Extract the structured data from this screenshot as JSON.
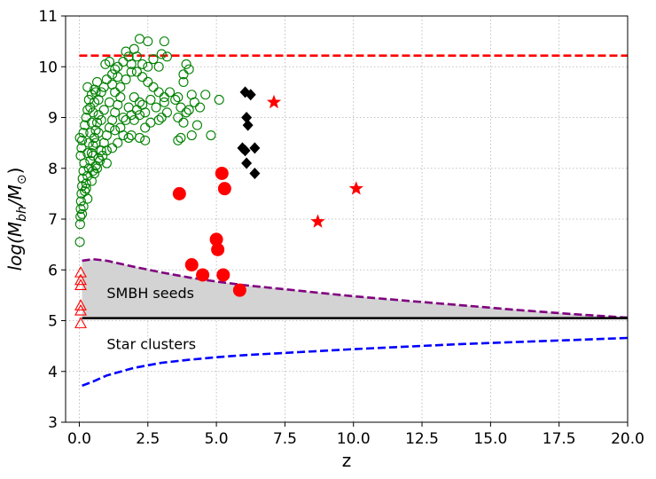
{
  "chart_data": {
    "type": "scatter",
    "title": "",
    "xlabel": "z",
    "ylabel": "log(M_bh/M_⊙)",
    "ylabel_parts": {
      "prefix": "log(M",
      "sub1": "bh",
      "mid": "/M",
      "sub2": "⊙",
      "suffix": ")"
    },
    "xlim": [
      -0.5,
      20.0
    ],
    "ylim": [
      3,
      11
    ],
    "xticks": [
      0.0,
      2.5,
      5.0,
      7.5,
      10.0,
      12.5,
      15.0,
      17.5,
      20.0
    ],
    "xtick_labels": [
      "0.0",
      "2.5",
      "5.0",
      "7.5",
      "10.0",
      "12.5",
      "15.0",
      "17.5",
      "20.0"
    ],
    "yticks": [
      3,
      4,
      5,
      6,
      7,
      8,
      9,
      10,
      11
    ],
    "ytick_labels": [
      "3",
      "4",
      "5",
      "6",
      "7",
      "8",
      "9",
      "10",
      "11"
    ],
    "grid": true,
    "annotations": [
      {
        "text": "SMBH seeds",
        "x": 1.0,
        "y": 5.55
      },
      {
        "text": "Star clusters",
        "x": 1.0,
        "y": 4.55
      }
    ],
    "reference_lines": {
      "upper_limit": {
        "y": 10.22,
        "color": "#ff0000",
        "style": "dashed"
      },
      "seed_threshold": {
        "y": 5.05,
        "color": "#000000",
        "style": "solid"
      }
    },
    "curves": [
      {
        "name": "seed-upper-curve",
        "color": "#800080",
        "style": "dashed",
        "x": [
          0.1,
          0.5,
          1.0,
          2.0,
          3.0,
          4.0,
          5.0,
          6.0,
          8.0,
          10.0,
          12.0,
          14.0,
          16.0,
          18.0,
          20.0
        ],
        "y": [
          6.18,
          6.21,
          6.18,
          6.06,
          5.95,
          5.85,
          5.77,
          5.7,
          5.59,
          5.48,
          5.39,
          5.3,
          5.21,
          5.13,
          5.06
        ]
      },
      {
        "name": "cluster-curve",
        "color": "#0000ff",
        "style": "dashed",
        "x": [
          0.1,
          0.5,
          1.0,
          2.0,
          3.0,
          4.0,
          5.0,
          6.0,
          8.0,
          10.0,
          12.0,
          14.0,
          16.0,
          18.0,
          20.0
        ],
        "y": [
          3.72,
          3.8,
          3.92,
          4.07,
          4.17,
          4.23,
          4.28,
          4.32,
          4.38,
          4.44,
          4.49,
          4.54,
          4.58,
          4.62,
          4.66
        ]
      }
    ],
    "shaded_region": {
      "color": "#d3d3d3",
      "between": [
        "seed-upper-curve",
        "seed_threshold"
      ]
    },
    "colors": {
      "green": "#008000",
      "red": "#ff0000",
      "black": "#000000",
      "grid": "#b0b0b0"
    },
    "series": [
      {
        "name": "low-z quasars",
        "marker": "open-circle",
        "color": "#008000",
        "points": [
          [
            0.02,
            6.55
          ],
          [
            0.03,
            6.9
          ],
          [
            0.04,
            7.05
          ],
          [
            0.05,
            7.2
          ],
          [
            0.06,
            7.35
          ],
          [
            0.08,
            7.5
          ],
          [
            0.1,
            7.65
          ],
          [
            0.12,
            7.8
          ],
          [
            0.15,
            7.95
          ],
          [
            0.18,
            8.1
          ],
          [
            0.05,
            8.25
          ],
          [
            0.08,
            8.4
          ],
          [
            0.1,
            8.55
          ],
          [
            0.15,
            8.7
          ],
          [
            0.2,
            8.85
          ],
          [
            0.25,
            9.0
          ],
          [
            0.3,
            9.15
          ],
          [
            0.02,
            8.6
          ],
          [
            0.2,
            7.55
          ],
          [
            0.25,
            7.7
          ],
          [
            0.3,
            7.85
          ],
          [
            0.35,
            8.0
          ],
          [
            0.4,
            8.15
          ],
          [
            0.45,
            8.3
          ],
          [
            0.5,
            8.45
          ],
          [
            0.55,
            8.6
          ],
          [
            0.6,
            8.75
          ],
          [
            0.65,
            8.9
          ],
          [
            0.7,
            9.05
          ],
          [
            0.3,
            8.3
          ],
          [
            0.35,
            8.5
          ],
          [
            0.4,
            8.7
          ],
          [
            0.45,
            8.9
          ],
          [
            0.5,
            9.1
          ],
          [
            0.55,
            9.3
          ],
          [
            0.6,
            9.5
          ],
          [
            0.4,
            9.2
          ],
          [
            0.5,
            7.95
          ],
          [
            0.6,
            8.05
          ],
          [
            0.7,
            8.2
          ],
          [
            0.8,
            8.35
          ],
          [
            0.9,
            8.5
          ],
          [
            1.0,
            8.65
          ],
          [
            1.1,
            8.8
          ],
          [
            1.2,
            8.95
          ],
          [
            1.3,
            9.1
          ],
          [
            1.4,
            9.25
          ],
          [
            1.5,
            9.4
          ],
          [
            0.7,
            9.35
          ],
          [
            0.8,
            9.5
          ],
          [
            0.9,
            9.6
          ],
          [
            1.0,
            9.75
          ],
          [
            1.2,
            9.85
          ],
          [
            1.4,
            10.0
          ],
          [
            1.6,
            10.1
          ],
          [
            1.8,
            10.2
          ],
          [
            2.0,
            10.35
          ],
          [
            2.2,
            10.55
          ],
          [
            2.5,
            10.5
          ],
          [
            3.1,
            10.5
          ],
          [
            1.7,
            10.3
          ],
          [
            1.9,
            10.05
          ],
          [
            2.1,
            9.9
          ],
          [
            2.3,
            9.8
          ],
          [
            2.5,
            9.7
          ],
          [
            2.7,
            9.6
          ],
          [
            2.9,
            9.5
          ],
          [
            3.1,
            9.4
          ],
          [
            1.6,
            9.0
          ],
          [
            1.8,
            9.2
          ],
          [
            2.0,
            9.4
          ],
          [
            2.2,
            9.3
          ],
          [
            2.4,
            9.1
          ],
          [
            2.6,
            8.9
          ],
          [
            1.2,
            8.4
          ],
          [
            1.4,
            8.5
          ],
          [
            1.6,
            8.65
          ],
          [
            1.9,
            8.65
          ],
          [
            2.2,
            8.6
          ],
          [
            2.4,
            8.55
          ],
          [
            1.0,
            8.35
          ],
          [
            1.3,
            8.75
          ],
          [
            1.5,
            8.8
          ],
          [
            1.7,
            8.95
          ],
          [
            1.9,
            9.05
          ],
          [
            2.1,
            9.15
          ],
          [
            2.3,
            9.25
          ],
          [
            2.6,
            9.35
          ],
          [
            2.8,
            9.2
          ],
          [
            3.0,
            9.0
          ],
          [
            3.2,
            9.1
          ],
          [
            2.7,
            10.15
          ],
          [
            2.9,
            10.0
          ],
          [
            3.0,
            10.25
          ],
          [
            3.2,
            10.2
          ],
          [
            2.5,
            10.0
          ],
          [
            2.3,
            10.05
          ],
          [
            2.1,
            10.2
          ],
          [
            1.9,
            9.9
          ],
          [
            1.7,
            9.75
          ],
          [
            1.5,
            9.6
          ],
          [
            1.3,
            9.5
          ],
          [
            1.1,
            9.3
          ],
          [
            0.9,
            9.15
          ],
          [
            0.8,
            8.95
          ],
          [
            0.7,
            8.7
          ],
          [
            0.6,
            8.5
          ],
          [
            0.5,
            8.25
          ],
          [
            3.3,
            9.5
          ],
          [
            3.5,
            9.35
          ],
          [
            3.7,
            9.2
          ],
          [
            3.9,
            9.1
          ],
          [
            3.6,
            9.0
          ],
          [
            3.8,
            8.9
          ],
          [
            3.7,
            8.6
          ],
          [
            3.6,
            8.55
          ],
          [
            4.0,
            9.15
          ],
          [
            4.2,
            9.3
          ],
          [
            4.4,
            9.2
          ],
          [
            4.6,
            9.45
          ],
          [
            4.8,
            8.65
          ],
          [
            5.1,
            9.35
          ],
          [
            4.1,
            8.65
          ],
          [
            4.3,
            8.85
          ],
          [
            3.8,
            9.85
          ],
          [
            3.9,
            10.05
          ],
          [
            4.0,
            9.95
          ],
          [
            3.8,
            9.7
          ],
          [
            4.1,
            9.45
          ],
          [
            3.6,
            9.4
          ],
          [
            1.2,
            9.65
          ],
          [
            1.4,
            9.8
          ],
          [
            0.95,
            10.05
          ],
          [
            1.1,
            10.1
          ],
          [
            1.3,
            9.95
          ],
          [
            2.0,
            8.95
          ],
          [
            2.2,
            9.05
          ],
          [
            2.4,
            8.8
          ],
          [
            1.8,
            8.6
          ],
          [
            3.1,
            9.3
          ],
          [
            2.9,
            8.95
          ],
          [
            0.85,
            8.25
          ],
          [
            1.0,
            8.1
          ],
          [
            0.3,
            7.4
          ],
          [
            0.15,
            7.25
          ],
          [
            0.1,
            7.1
          ],
          [
            0.25,
            7.6
          ],
          [
            0.45,
            7.75
          ],
          [
            0.55,
            7.9
          ],
          [
            0.65,
            8.0
          ],
          [
            0.75,
            8.15
          ],
          [
            0.35,
            9.35
          ],
          [
            0.45,
            9.45
          ],
          [
            0.55,
            9.55
          ],
          [
            0.3,
            9.6
          ],
          [
            0.65,
            9.7
          ]
        ]
      },
      {
        "name": "high-z quasars",
        "marker": "filled-diamond",
        "color": "#000000",
        "points": [
          [
            6.05,
            9.5
          ],
          [
            6.25,
            9.45
          ],
          [
            6.1,
            9.0
          ],
          [
            6.15,
            8.85
          ],
          [
            5.95,
            8.4
          ],
          [
            6.05,
            8.35
          ],
          [
            6.4,
            8.4
          ],
          [
            6.1,
            8.1
          ],
          [
            6.4,
            7.9
          ]
        ]
      },
      {
        "name": "stars",
        "marker": "filled-star",
        "color": "#ff0000",
        "points": [
          [
            7.1,
            9.3
          ],
          [
            10.1,
            7.6
          ],
          [
            8.7,
            6.95
          ]
        ]
      },
      {
        "name": "red-circles",
        "marker": "filled-circle",
        "color": "#ff0000",
        "points": [
          [
            3.65,
            7.5
          ],
          [
            5.2,
            7.9
          ],
          [
            5.3,
            7.6
          ],
          [
            5.0,
            6.6
          ],
          [
            5.05,
            6.4
          ],
          [
            4.1,
            6.1
          ],
          [
            4.5,
            5.9
          ],
          [
            5.25,
            5.9
          ],
          [
            5.85,
            5.6
          ]
        ]
      },
      {
        "name": "open-triangles",
        "marker": "open-triangle",
        "color": "#ff0000",
        "points": [
          [
            0.05,
            5.95
          ],
          [
            0.05,
            5.8
          ],
          [
            0.05,
            5.7
          ],
          [
            0.05,
            5.3
          ],
          [
            0.05,
            5.2
          ],
          [
            0.05,
            4.95
          ]
        ]
      }
    ]
  }
}
